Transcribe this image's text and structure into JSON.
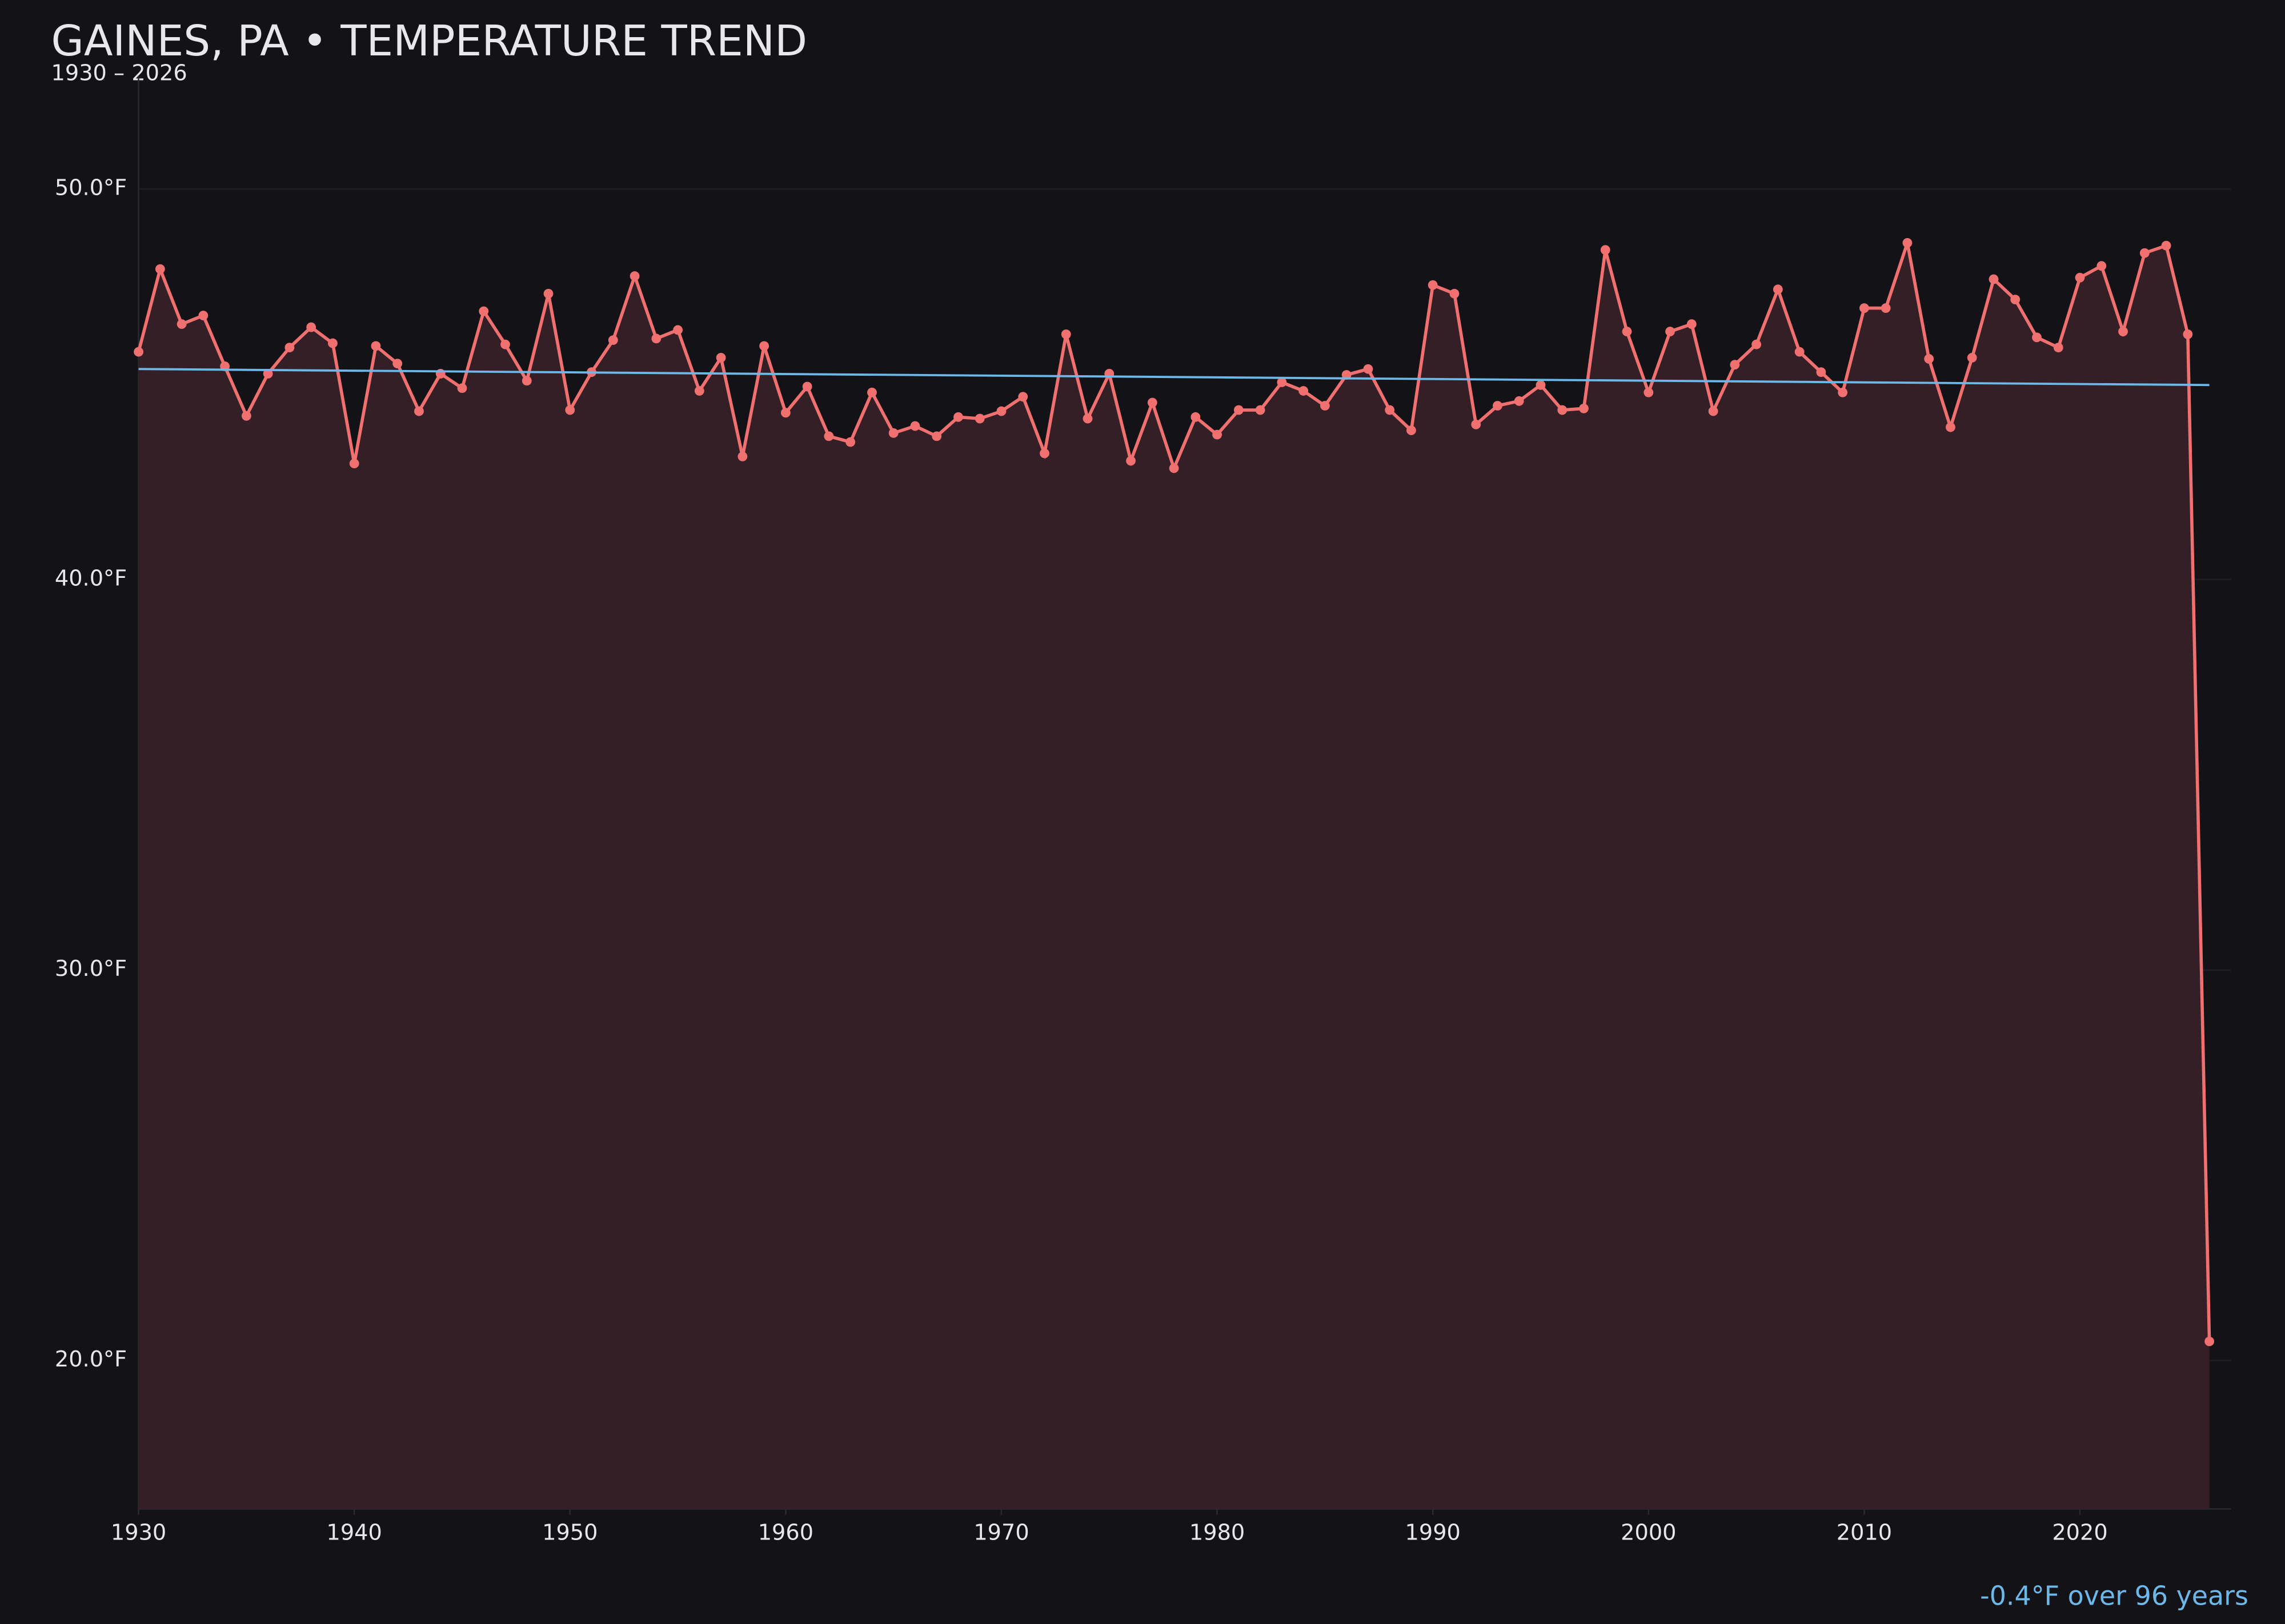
{
  "chart_data": {
    "type": "line",
    "title": "GAINES, PA • TEMPERATURE TREND",
    "subtitle": "1930 – 2026",
    "annotation": "-0.4°F over 96 years",
    "x": [
      1930,
      1931,
      1932,
      1933,
      1934,
      1935,
      1936,
      1937,
      1938,
      1939,
      1940,
      1941,
      1942,
      1943,
      1944,
      1945,
      1946,
      1947,
      1948,
      1949,
      1950,
      1951,
      1952,
      1953,
      1954,
      1955,
      1956,
      1957,
      1958,
      1959,
      1960,
      1961,
      1962,
      1963,
      1964,
      1965,
      1966,
      1967,
      1968,
      1969,
      1970,
      1971,
      1972,
      1973,
      1974,
      1975,
      1976,
      1977,
      1978,
      1979,
      1980,
      1981,
      1982,
      1983,
      1984,
      1985,
      1986,
      1987,
      1988,
      1989,
      1990,
      1991,
      1992,
      1993,
      1994,
      1995,
      1996,
      1997,
      1998,
      1999,
      2000,
      2001,
      2002,
      2003,
      2004,
      2005,
      2006,
      2007,
      2008,
      2009,
      2010,
      2011,
      2012,
      2013,
      2014,
      2015,
      2016,
      2017,
      2018,
      2019,
      2020,
      2021,
      2022,
      2023,
      2024,
      2025,
      2026
    ],
    "series": [
      {
        "color": "#f07070",
        "values": [
          45.83,
          47.95,
          46.54,
          46.76,
          45.46,
          44.19,
          45.27,
          45.94,
          46.46,
          46.05,
          42.97,
          45.98,
          45.53,
          44.31,
          45.27,
          44.9,
          46.87,
          46.02,
          45.09,
          47.32,
          44.34,
          45.31,
          46.13,
          47.77,
          46.17,
          46.39,
          44.83,
          45.68,
          43.15,
          45.98,
          44.27,
          44.94,
          43.67,
          43.52,
          44.79,
          43.75,
          43.93,
          43.67,
          44.16,
          44.12,
          44.31,
          44.68,
          43.23,
          46.28,
          44.12,
          45.27,
          43.04,
          44.53,
          42.85,
          44.16,
          43.71,
          44.34,
          44.34,
          45.05,
          44.83,
          44.45,
          45.24,
          45.39,
          44.34,
          43.82,
          47.54,
          47.32,
          43.97,
          44.45,
          44.57,
          44.98,
          44.34,
          44.38,
          48.44,
          46.35,
          44.79,
          46.35,
          46.54,
          44.31,
          45.5,
          46.02,
          47.43,
          45.83,
          45.31,
          44.79,
          46.95,
          46.95,
          48.62,
          45.65,
          43.9,
          45.68,
          47.69,
          47.17,
          46.2,
          45.94,
          47.73,
          48.03,
          46.35,
          48.36,
          48.55,
          46.28,
          20.49
        ]
      }
    ],
    "trend": {
      "x": [
        1930,
        2026
      ],
      "values": [
        45.39,
        44.98
      ],
      "color": "#6cb8e8"
    },
    "fill_color": "#331f25",
    "xlim": [
      1930,
      2027
    ],
    "ylim": [
      16.2,
      52.9
    ],
    "xticks": [
      1930,
      1940,
      1950,
      1960,
      1970,
      1980,
      1990,
      2000,
      2010,
      2020
    ],
    "yticks": [
      {
        "value": 20,
        "label": "20.0°F"
      },
      {
        "value": 30,
        "label": "30.0°F"
      },
      {
        "value": 40,
        "label": "40.0°F"
      },
      {
        "value": 50,
        "label": "50.0°F"
      }
    ],
    "grid": true
  }
}
